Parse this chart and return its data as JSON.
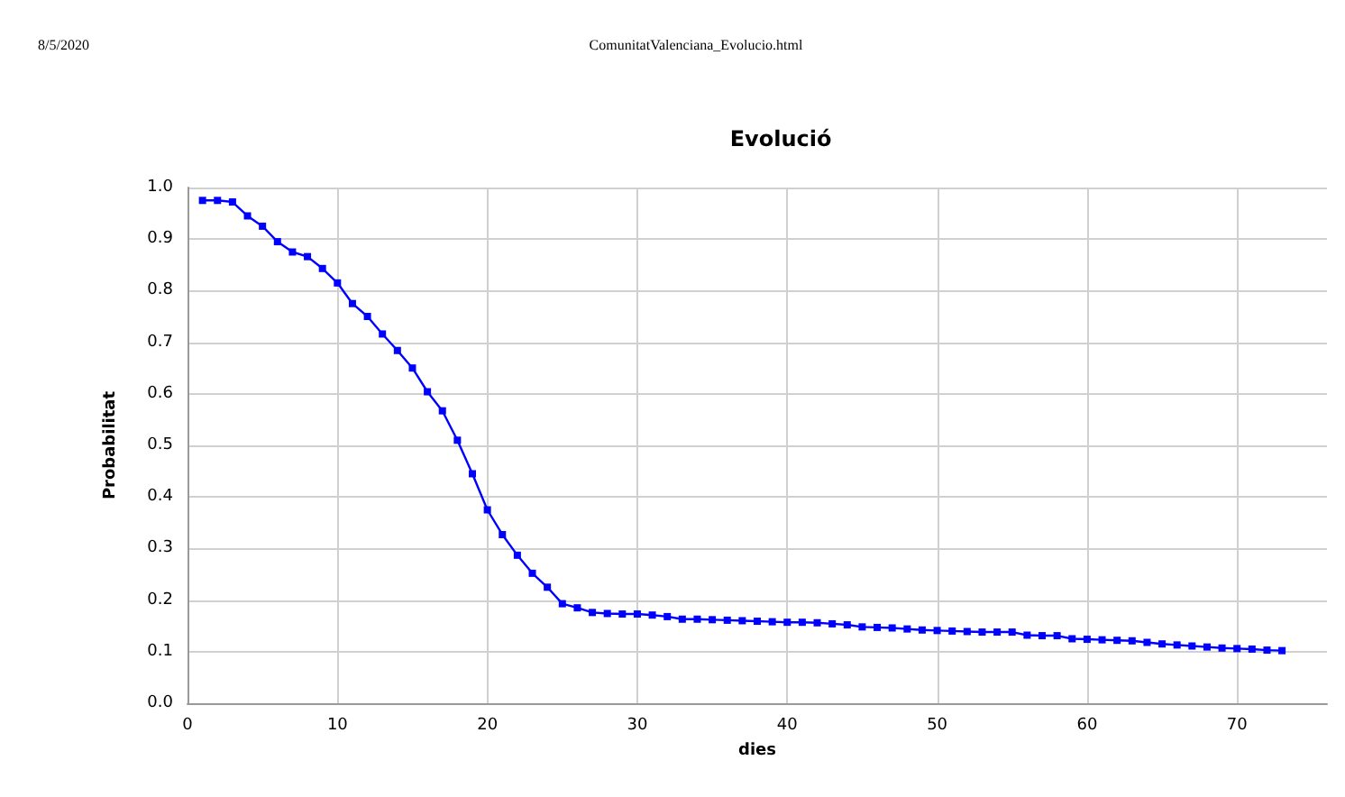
{
  "chart_data": {
    "type": "line",
    "title": "Evolució",
    "xlabel": "dies",
    "ylabel": "Probabilitat",
    "annotations": [
      "8/5/2020",
      "ComunitatValenciana_Evolucio.html"
    ],
    "x": [
      1,
      2,
      3,
      4,
      5,
      6,
      7,
      8,
      9,
      10,
      11,
      12,
      13,
      14,
      15,
      16,
      17,
      18,
      19,
      20,
      21,
      22,
      23,
      24,
      25,
      26,
      27,
      28,
      29,
      30,
      31,
      32,
      33,
      34,
      35,
      36,
      37,
      38,
      39,
      40,
      41,
      42,
      43,
      44,
      45,
      46,
      47,
      48,
      49,
      50,
      51,
      52,
      53,
      54,
      55,
      56,
      57,
      58,
      59,
      60,
      61,
      62,
      63,
      64,
      65,
      66,
      67,
      68,
      69,
      70,
      71,
      72,
      73
    ],
    "series": [
      {
        "color": "#0000ff",
        "values": [
          0.975,
          0.975,
          0.972,
          0.945,
          0.925,
          0.895,
          0.875,
          0.866,
          0.843,
          0.815,
          0.775,
          0.75,
          0.716,
          0.684,
          0.65,
          0.604,
          0.567,
          0.51,
          0.445,
          0.375,
          0.327,
          0.287,
          0.252,
          0.225,
          0.193,
          0.185,
          0.176,
          0.174,
          0.173,
          0.173,
          0.171,
          0.168,
          0.163,
          0.163,
          0.162,
          0.161,
          0.16,
          0.159,
          0.158,
          0.157,
          0.157,
          0.156,
          0.154,
          0.152,
          0.148,
          0.147,
          0.146,
          0.144,
          0.142,
          0.141,
          0.14,
          0.139,
          0.138,
          0.138,
          0.138,
          0.132,
          0.131,
          0.131,
          0.125,
          0.124,
          0.123,
          0.122,
          0.121,
          0.118,
          0.115,
          0.113,
          0.111,
          0.109,
          0.107,
          0.106,
          0.105,
          0.103,
          0.102
        ]
      }
    ],
    "xlim": [
      0,
      76
    ],
    "xticks": [
      0,
      10,
      20,
      30,
      40,
      50,
      60,
      70
    ],
    "ylim": [
      0,
      1
    ],
    "yticks": [
      {
        "value": 0,
        "label": "0.0"
      },
      {
        "value": 0.1,
        "label": "0.1"
      },
      {
        "value": 0.2,
        "label": "0.2"
      },
      {
        "value": 0.3,
        "label": "0.3"
      },
      {
        "value": 0.4,
        "label": "0.4"
      },
      {
        "value": 0.5,
        "label": "0.5"
      },
      {
        "value": 0.6,
        "label": "0.6"
      },
      {
        "value": 0.7,
        "label": "0.7"
      },
      {
        "value": 0.8,
        "label": "0.8"
      },
      {
        "value": 0.9,
        "label": "0.9"
      },
      {
        "value": 1,
        "label": "1.0"
      }
    ],
    "grid": true,
    "marker": "square",
    "line_style": "solid"
  }
}
